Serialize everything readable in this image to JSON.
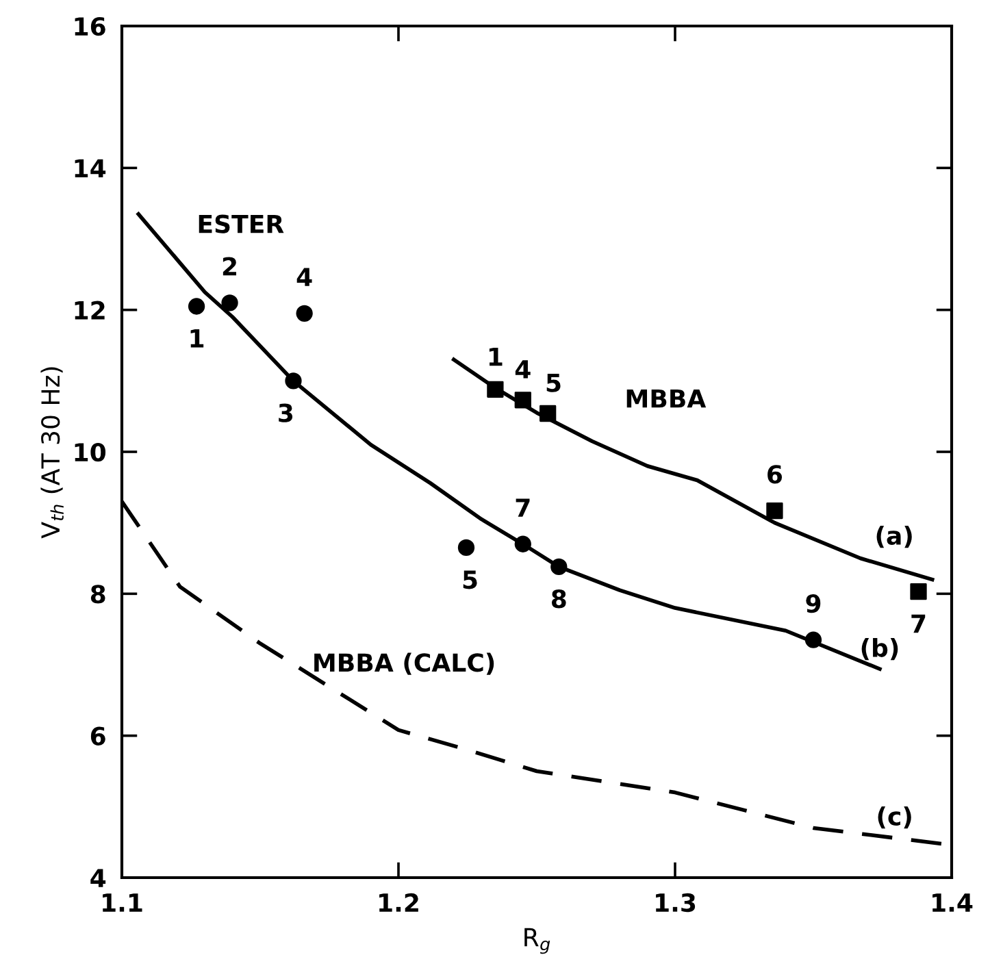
{
  "chart_data": {
    "type": "line",
    "xlabel": "R$_{g}$",
    "ylabel": "V$_{th}$ (AT 30 Hz)",
    "xlim": [
      1.1,
      1.4
    ],
    "xticks": [
      1.1,
      1.2,
      1.3,
      1.4
    ],
    "ylim": [
      4,
      16
    ],
    "yticks": [
      4,
      6,
      8,
      10,
      12,
      14,
      16
    ],
    "grid": false,
    "legend": false,
    "series": [
      {
        "type": "scatter",
        "marker": "circle",
        "color": "#000000",
        "x": [
          1.127,
          1.139,
          1.162,
          1.166,
          1.2245,
          1.245,
          1.258,
          1.35
        ],
        "values": [
          12.05,
          12.1,
          11.0,
          11.95,
          8.65,
          8.7,
          8.38,
          7.35
        ]
      },
      {
        "type": "scatter",
        "marker": "square",
        "color": "#000000",
        "x": [
          1.235,
          1.245,
          1.254,
          1.336,
          1.388
        ],
        "values": [
          10.88,
          10.73,
          10.54,
          9.17,
          8.03
        ]
      },
      {
        "name": "(a)",
        "line_style": "solid",
        "color": "#000000",
        "x": [
          1.22,
          1.235,
          1.25,
          1.27,
          1.29,
          1.308,
          1.336,
          1.367,
          1.393
        ],
        "values": [
          11.3,
          10.9,
          10.55,
          10.15,
          9.8,
          9.6,
          9.0,
          8.5,
          8.2
        ]
      },
      {
        "name": "(b)",
        "line_style": "solid",
        "color": "#000000",
        "x": [
          1.106,
          1.13,
          1.14,
          1.162,
          1.19,
          1.2115,
          1.23,
          1.245,
          1.258,
          1.28,
          1.3,
          1.34,
          1.374
        ],
        "values": [
          13.35,
          12.25,
          11.9,
          11.0,
          10.1,
          9.56,
          9.05,
          8.7,
          8.38,
          8.05,
          7.8,
          7.48,
          6.94
        ]
      },
      {
        "name": "(c)",
        "line_style": "dashed",
        "color": "#000000",
        "x": [
          1.1,
          1.121,
          1.15,
          1.2,
          1.225,
          1.25,
          1.3,
          1.35,
          1.4
        ],
        "values": [
          9.3,
          8.1,
          7.3,
          6.08,
          5.8,
          5.5,
          5.2,
          4.7,
          4.46
        ]
      }
    ],
    "annotations": [
      "ESTER",
      "MBBA",
      "MBBA (CALC)",
      {
        "text": "1",
        "x": 1.127,
        "y": 12.05
      },
      {
        "text": "2",
        "x": 1.139,
        "y": 12.1
      },
      {
        "text": "3",
        "x": 1.162,
        "y": 11.0
      },
      {
        "text": "4",
        "x": 1.166,
        "y": 11.95
      },
      {
        "text": "5",
        "x": 1.2245,
        "y": 8.65
      },
      {
        "text": "7",
        "x": 1.245,
        "y": 8.7
      },
      {
        "text": "8",
        "x": 1.258,
        "y": 8.38
      },
      {
        "text": "9",
        "x": 1.35,
        "y": 7.35
      },
      {
        "text": "1",
        "x": 1.235,
        "y": 10.88
      },
      {
        "text": "4",
        "x": 1.245,
        "y": 10.73
      },
      {
        "text": "5",
        "x": 1.254,
        "y": 10.54
      },
      {
        "text": "6",
        "x": 1.336,
        "y": 9.17
      },
      {
        "text": "7",
        "x": 1.388,
        "y": 8.03
      }
    ]
  }
}
